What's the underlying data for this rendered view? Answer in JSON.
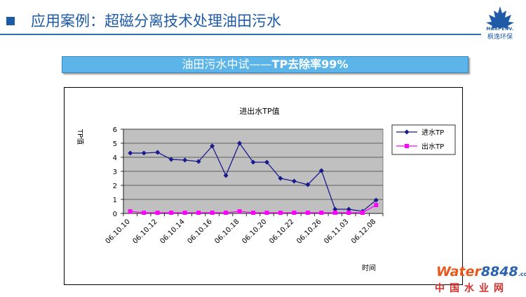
{
  "header": {
    "title": "应用案例：超磁分离技术处理油田污水",
    "logo_text_en": "MARI ENV.",
    "logo_text_cn": "枫逸环保"
  },
  "banner": {
    "prefix": "油田污水中试——",
    "bold": "TP去除率99%"
  },
  "watermark": {
    "w1": "Water",
    "w2": "8848",
    "w3": ".com",
    "cn": "中国水业网"
  },
  "colors": {
    "accent": "#1f5aa6",
    "inlet": "#1a1a8c",
    "outlet": "#ff00ff",
    "plot_bg": "#c0c0c0",
    "banner": "#5cb5e8"
  },
  "chart_data": {
    "type": "line",
    "title": "进出水TP值",
    "xlabel": "时间",
    "ylabel": "TP值",
    "ylim": [
      0,
      6
    ],
    "yticks": [
      0,
      1,
      2,
      3,
      4,
      5,
      6
    ],
    "x": [
      "06.10.10",
      "06.10.11",
      "06.10.12",
      "06.10.13",
      "06.10.14",
      "06.10.15",
      "06.10.16",
      "06.10.17",
      "06.10.18",
      "06.10.19",
      "06.10.20",
      "06.10.21",
      "06.10.22",
      "06.10.23",
      "06.10.26",
      "06.10.28",
      "06.11.03",
      "06.11.08",
      "06.12.08"
    ],
    "xtick_labels": [
      "06.10.10",
      "06.10.12",
      "06.10.14",
      "06.10.16",
      "06.10.18",
      "06.10.20",
      "06.10.22",
      "06.10.26",
      "06.11.03",
      "06.12.08"
    ],
    "series": [
      {
        "name": "进水TP",
        "color": "#1a1a8c",
        "marker": "diamond",
        "values": [
          4.3,
          4.3,
          4.35,
          3.85,
          3.8,
          3.7,
          4.8,
          2.7,
          5.0,
          3.65,
          3.65,
          2.5,
          2.3,
          2.05,
          3.05,
          0.3,
          0.3,
          0.15,
          0.95
        ]
      },
      {
        "name": "出水TP",
        "color": "#ff00ff",
        "marker": "square",
        "values": [
          0.15,
          0.05,
          0.05,
          0.05,
          0.05,
          0.05,
          0.05,
          0.05,
          0.15,
          0.05,
          0.05,
          0.05,
          0.05,
          0.05,
          0.05,
          0.05,
          0.05,
          0.05,
          0.6
        ]
      }
    ],
    "grid": true,
    "legend": "right"
  }
}
